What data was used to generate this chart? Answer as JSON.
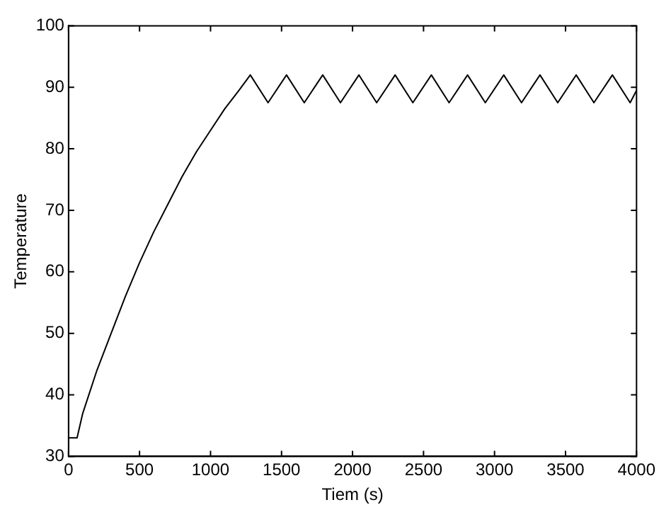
{
  "chart_data": {
    "type": "line",
    "xlabel": "Tiem (s)",
    "ylabel": "Temperature",
    "xlim": [
      0,
      4000
    ],
    "ylim": [
      30,
      100
    ],
    "xticks": [
      0,
      500,
      1000,
      1500,
      2000,
      2500,
      3000,
      3500,
      4000
    ],
    "yticks": [
      30,
      40,
      50,
      60,
      70,
      80,
      90,
      100
    ],
    "grid": false,
    "legend": false,
    "marker": "none",
    "line_style": "solid",
    "series": [
      {
        "color": "#000000",
        "x": [
          0,
          60,
          100,
          200,
          300,
          400,
          500,
          600,
          700,
          800,
          900,
          1000,
          1100,
          1200,
          1280,
          1405,
          1535,
          1660,
          1790,
          1915,
          2045,
          2170,
          2300,
          2425,
          2555,
          2680,
          2810,
          2935,
          3065,
          3190,
          3320,
          3445,
          3575,
          3700,
          3830,
          3955,
          4000
        ],
        "values": [
          33,
          33,
          37,
          44,
          50,
          56,
          61.5,
          66.5,
          71,
          75.5,
          79.5,
          83,
          86.5,
          89.5,
          92,
          87.5,
          92,
          87.5,
          92,
          87.5,
          92,
          87.5,
          92,
          87.5,
          92,
          87.5,
          92,
          87.5,
          92,
          87.5,
          92,
          87.5,
          92,
          87.5,
          92,
          87.5,
          89.5
        ]
      }
    ]
  }
}
